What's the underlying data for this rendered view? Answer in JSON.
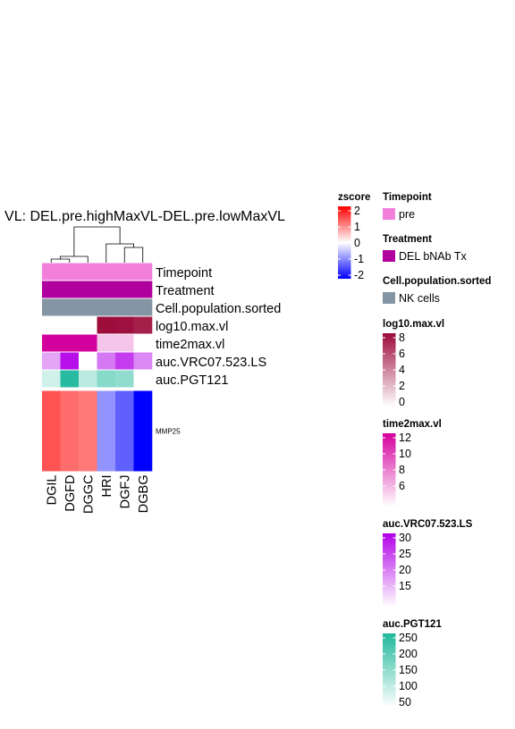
{
  "chart_data": {
    "type": "heatmap",
    "title": "VL: DEL.pre.highMaxVL-DEL.pre.lowMaxVL",
    "columns": [
      "DGIL",
      "DGFD",
      "DGGC",
      "HRI",
      "DGFJ",
      "DGBG"
    ],
    "rows": [
      "MMP25"
    ],
    "values": [
      [
        1.35,
        1.15,
        1.05,
        -0.85,
        -1.25,
        -2.0
      ]
    ],
    "color_scale": {
      "name": "zscore",
      "ticks": [
        2,
        1,
        0,
        -1,
        -2
      ],
      "low": "#0000ff",
      "mid": "#ffffff",
      "high": "#ff0000"
    },
    "annotations": [
      {
        "name": "Timepoint",
        "type": "categorical",
        "values": [
          "pre",
          "pre",
          "pre",
          "pre",
          "pre",
          "pre"
        ],
        "legend": [
          {
            "label": "pre",
            "color": "#f27fdc"
          }
        ]
      },
      {
        "name": "Treatment",
        "type": "categorical",
        "values": [
          "DEL bNAb Tx",
          "DEL bNAb Tx",
          "DEL bNAb Tx",
          "DEL bNAb Tx",
          "DEL bNAb Tx",
          "DEL bNAb Tx"
        ],
        "legend": [
          {
            "label": "DEL bNAb Tx",
            "color": "#b0009e"
          }
        ]
      },
      {
        "name": "Cell.population.sorted",
        "type": "categorical",
        "values": [
          "NK cells",
          "NK cells",
          "NK cells",
          "NK cells",
          "NK cells",
          "NK cells"
        ],
        "legend": [
          {
            "label": "NK cells",
            "color": "#8495a3"
          }
        ]
      },
      {
        "name": "log10.max.vl",
        "type": "continuous",
        "values": [
          null,
          null,
          null,
          7.9,
          7.8,
          7.3
        ],
        "ticks": [
          8,
          6,
          4,
          2,
          0
        ],
        "range": [
          0,
          8
        ],
        "low": "#ffffff",
        "high": "#9c0a3a"
      },
      {
        "name": "time2max.vl",
        "type": "continuous",
        "values": [
          12.5,
          12.5,
          12.5,
          7.5,
          7.5,
          null
        ],
        "ticks": [
          12,
          10,
          8,
          6
        ],
        "range": [
          6,
          12.5
        ],
        "low": "#ffffff",
        "high": "#d4009e"
      },
      {
        "name": "auc.VRC07.523.LS",
        "type": "continuous",
        "values": [
          20,
          30,
          null,
          23,
          27,
          22
        ],
        "ticks": [
          30,
          25,
          20,
          15
        ],
        "range": [
          14,
          31
        ],
        "low": "#ffffff",
        "high": "#b200e8"
      },
      {
        "name": "auc.PGT121",
        "type": "continuous",
        "values": [
          90,
          250,
          110,
          160,
          150,
          null
        ],
        "ticks": [
          250,
          200,
          150,
          100,
          50
        ],
        "range": [
          45,
          260
        ],
        "low": "#ffffff",
        "high": "#1fb89c"
      }
    ],
    "dendrogram": {
      "merges": [
        [
          "DGIL",
          "DGFD"
        ],
        [
          "DGIL+DGFD",
          "DGGC"
        ],
        [
          "DGFJ",
          "DGBG"
        ],
        [
          "HRI",
          "DGFJ+DGBG"
        ],
        [
          "left",
          "right"
        ]
      ]
    }
  }
}
